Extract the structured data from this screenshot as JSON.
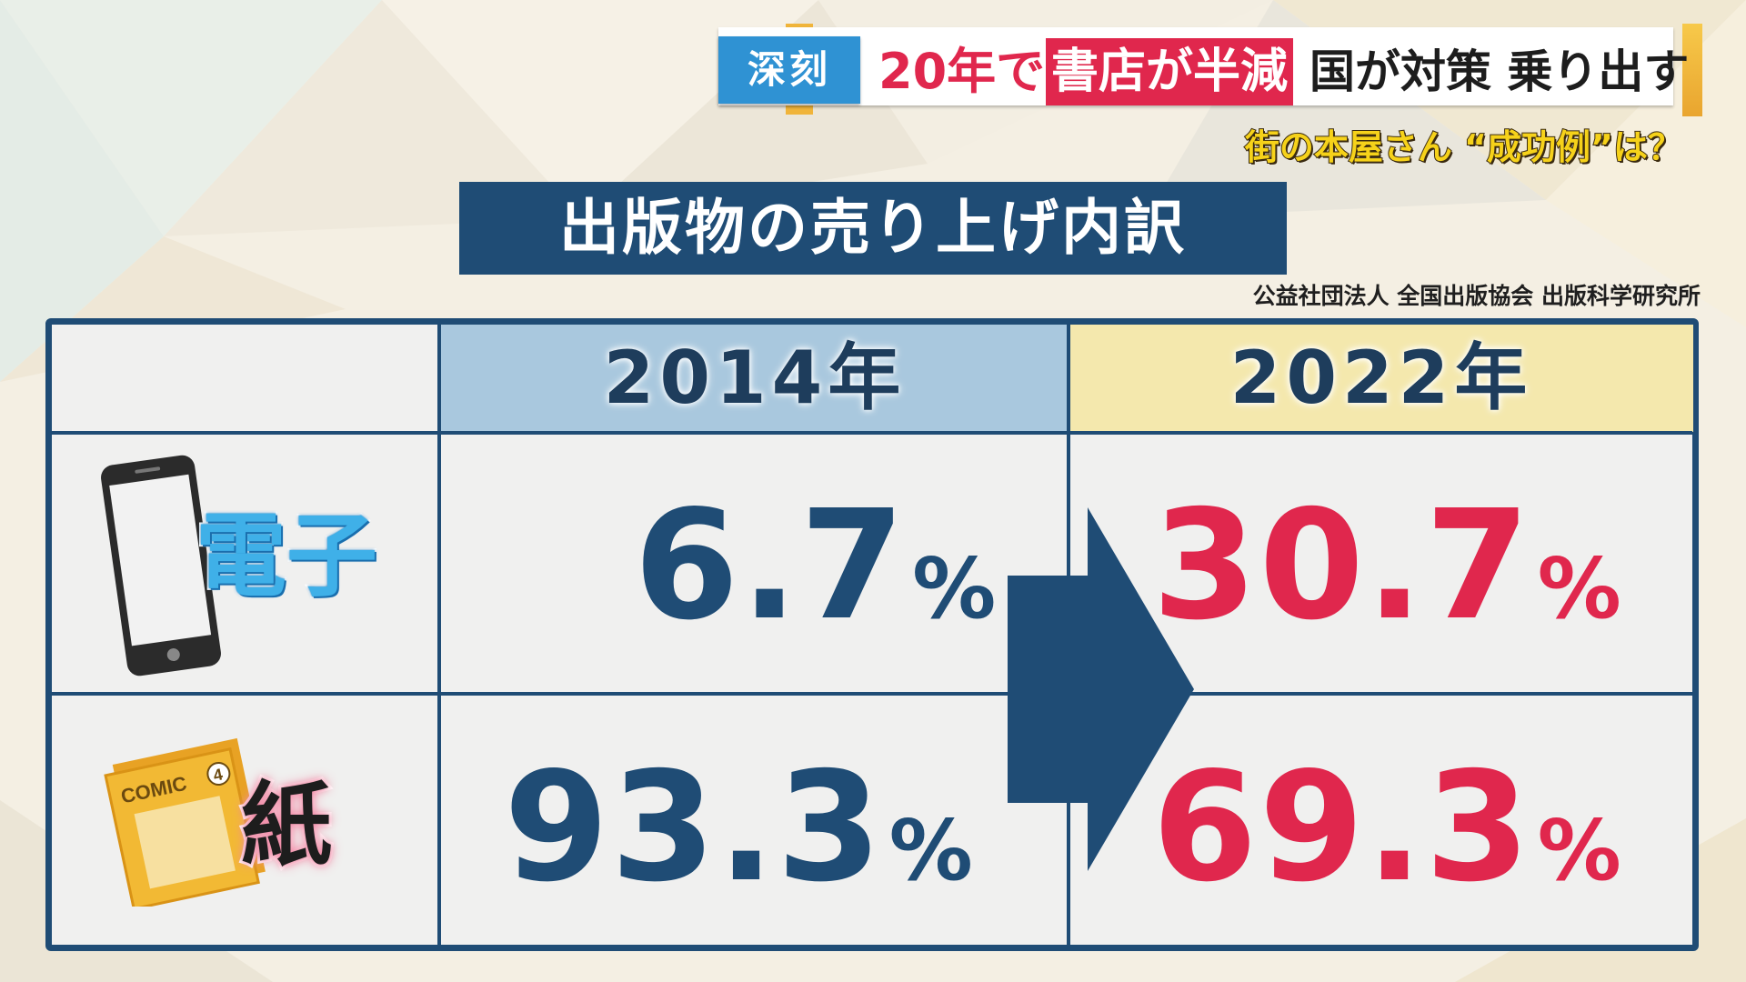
{
  "headline": {
    "tag": "深刻",
    "red_text": "20年で",
    "red_box_text": "書店が半減",
    "black_text": "国が対策 乗り出す",
    "subhead": "街の本屋さん “成功例”は？"
  },
  "section": {
    "title": "出版物の売り上げ内訳",
    "source": "公益社団法人 全国出版協会 出版科学研究所"
  },
  "table": {
    "columns": [
      "2014年",
      "2022年"
    ],
    "rows": [
      {
        "label": "電子",
        "icon": "smartphone-icon",
        "v2014": "6.7",
        "v2022": "30.7",
        "unit": "%"
      },
      {
        "label": "紙",
        "icon": "comic-book-icon",
        "v2014": "93.3",
        "v2022": "69.3",
        "unit": "%"
      }
    ],
    "comic_cover_text": "COMIC",
    "comic_cover_number": "4"
  },
  "colors": {
    "navy": "#1f4c75",
    "red": "#e0274d",
    "head_2014": "#a9c8de",
    "head_2022": "#f4e8ad",
    "tag_blue": "#2f92d3",
    "subhead_yellow": "#f6d21a"
  }
}
